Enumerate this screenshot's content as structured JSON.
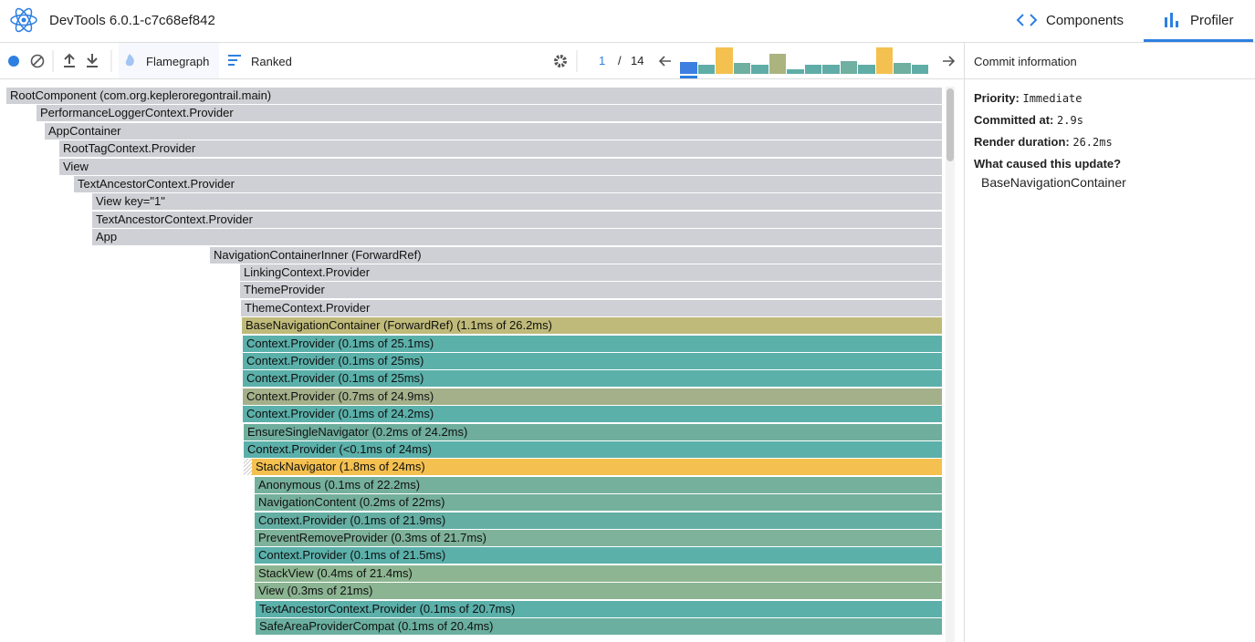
{
  "header": {
    "title": "DevTools 6.0.1-c7c68ef842",
    "tabs": [
      "Components",
      "Profiler"
    ]
  },
  "toolbar": {
    "modes": [
      "Flamegraph",
      "Ranked"
    ],
    "commit_index": "1",
    "commit_separator": "/",
    "commit_total": "14",
    "commits": [
      {
        "value": 13,
        "color": "#3d7fe0"
      },
      {
        "value": 10,
        "color": "#5fada6"
      },
      {
        "value": 29,
        "color": "#f4c04f"
      },
      {
        "value": 12,
        "color": "#6fb0a0"
      },
      {
        "value": 10,
        "color": "#5fada6"
      },
      {
        "value": 22,
        "color": "#abb47f"
      },
      {
        "value": 5,
        "color": "#5fada6"
      },
      {
        "value": 10,
        "color": "#5fada6"
      },
      {
        "value": 10,
        "color": "#5fada6"
      },
      {
        "value": 14,
        "color": "#6fb0a0"
      },
      {
        "value": 10,
        "color": "#5fada6"
      },
      {
        "value": 29,
        "color": "#f4c04f"
      },
      {
        "value": 12,
        "color": "#6fb0a0"
      },
      {
        "value": 10,
        "color": "#5fada6"
      }
    ]
  },
  "flamegraph": {
    "rows": [
      {
        "label": "RootComponent (com.org.kepleroregontrail.main)",
        "color": "#cfd0d5"
      },
      {
        "label": "PerformanceLoggerContext.Provider",
        "color": "#cfd0d5"
      },
      {
        "label": "AppContainer",
        "color": "#cfd0d5"
      },
      {
        "label": "RootTagContext.Provider",
        "color": "#cfd0d5"
      },
      {
        "label": "View",
        "color": "#cfd0d5"
      },
      {
        "label": "TextAncestorContext.Provider",
        "color": "#cfd0d5"
      },
      {
        "label": "View key=\"1\"",
        "color": "#cfd0d5"
      },
      {
        "label": "TextAncestorContext.Provider",
        "color": "#cfd0d5"
      },
      {
        "label": "App",
        "color": "#cfd0d5"
      },
      {
        "label": "NavigationContainerInner (ForwardRef)",
        "color": "#cfd0d5"
      },
      {
        "label": "LinkingContext.Provider",
        "color": "#cfd0d5"
      },
      {
        "label": "ThemeProvider",
        "color": "#cfd0d5"
      },
      {
        "label": "ThemeContext.Provider",
        "color": "#cfd0d5"
      },
      {
        "label": "BaseNavigationContainer (ForwardRef) (1.1ms of 26.2ms)",
        "color": "#bfba79"
      },
      {
        "label": "Context.Provider (0.1ms of 25.1ms)",
        "color": "#5bb0aa"
      },
      {
        "label": "Context.Provider (0.1ms of 25ms)",
        "color": "#5bb0aa"
      },
      {
        "label": "Context.Provider (0.1ms of 25ms)",
        "color": "#5bb0aa"
      },
      {
        "label": "Context.Provider (0.7ms of 24.9ms)",
        "color": "#a3b08a"
      },
      {
        "label": "Context.Provider (0.1ms of 24.2ms)",
        "color": "#5bb0aa"
      },
      {
        "label": "EnsureSingleNavigator (0.2ms of 24.2ms)",
        "color": "#6fae9c"
      },
      {
        "label": "Context.Provider (<0.1ms of 24ms)",
        "color": "#5bb0aa"
      },
      {
        "label": "StackNavigator (1.8ms of 24ms)",
        "color": "#f4c04f"
      },
      {
        "label": "Anonymous (0.1ms of 22.2ms)",
        "color": "#75b09c"
      },
      {
        "label": "NavigationContent (0.2ms of 22ms)",
        "color": "#75b09c"
      },
      {
        "label": "Context.Provider (0.1ms of 21.9ms)",
        "color": "#64aea3"
      },
      {
        "label": "PreventRemoveProvider (0.3ms of 21.7ms)",
        "color": "#7eb29a"
      },
      {
        "label": "Context.Provider (0.1ms of 21.5ms)",
        "color": "#5bb0aa"
      },
      {
        "label": "StackView (0.4ms of 21.4ms)",
        "color": "#8db591"
      },
      {
        "label": "View (0.3ms of 21ms)",
        "color": "#8bb492"
      },
      {
        "label": "TextAncestorContext.Provider (0.1ms of 20.7ms)",
        "color": "#5bb0aa"
      },
      {
        "label": "SafeAreaProviderCompat (0.1ms of 20.4ms)",
        "color": "#6aaf9f"
      }
    ]
  },
  "sidebar": {
    "title": "Commit information",
    "fields": [
      {
        "label": "Priority:",
        "value": "Immediate"
      },
      {
        "label": "Committed at:",
        "value": "2.9s"
      },
      {
        "label": "Render duration:",
        "value": "26.2ms"
      }
    ],
    "cause_title": "What caused this update?",
    "cause": "BaseNavigationContainer"
  }
}
